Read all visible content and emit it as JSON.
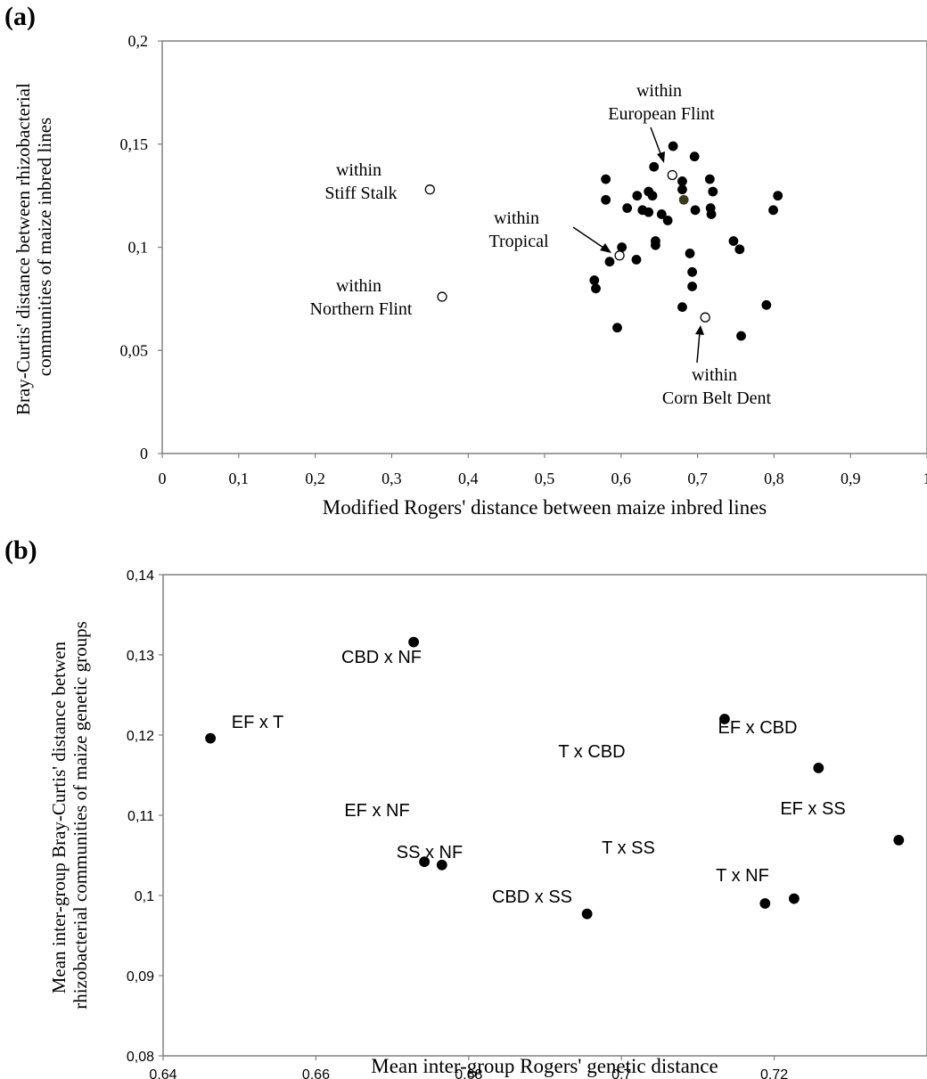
{
  "panels": [
    {
      "panel_label": "(a)",
      "chart_data": {
        "type": "scatter",
        "xlabel": "Modified Rogers' distance between maize inbred lines",
        "ylabel": [
          "Bray-Curtis' distance between rhizobacterial",
          "communities of maize inbred lines"
        ],
        "xlim": [
          0,
          1
        ],
        "ylim": [
          0,
          0.2
        ],
        "xticks": [
          0,
          0.1,
          0.2,
          0.3,
          0.4,
          0.5,
          0.6,
          0.7,
          0.8,
          0.9,
          1
        ],
        "xtick_labels": [
          "0",
          "0,1",
          "0,2",
          "0,3",
          "0,4",
          "0,5",
          "0,6",
          "0,7",
          "0,8",
          "0,9",
          "1"
        ],
        "yticks": [
          0,
          0.05,
          0.1,
          0.15,
          0.2
        ],
        "ytick_labels": [
          "0",
          "0,05",
          "0,1",
          "0,15",
          "0,2"
        ],
        "grid": false,
        "series": [
          {
            "marker": "filled",
            "color": "#000000",
            "points": [
              [
                0.668,
                0.149
              ],
              [
                0.696,
                0.144
              ],
              [
                0.643,
                0.139
              ],
              [
                0.68,
                0.132
              ],
              [
                0.716,
                0.133
              ],
              [
                0.58,
                0.133
              ],
              [
                0.68,
                0.128
              ],
              [
                0.636,
                0.127
              ],
              [
                0.72,
                0.127
              ],
              [
                0.621,
                0.125
              ],
              [
                0.641,
                0.125
              ],
              [
                0.805,
                0.125
              ],
              [
                0.58,
                0.123
              ],
              [
                0.608,
                0.119
              ],
              [
                0.628,
                0.118
              ],
              [
                0.636,
                0.117
              ],
              [
                0.697,
                0.118
              ],
              [
                0.717,
                0.119
              ],
              [
                0.718,
                0.116
              ],
              [
                0.653,
                0.116
              ],
              [
                0.799,
                0.118
              ],
              [
                0.661,
                0.113
              ],
              [
                0.747,
                0.103
              ],
              [
                0.645,
                0.103
              ],
              [
                0.645,
                0.101
              ],
              [
                0.601,
                0.1
              ],
              [
                0.755,
                0.099
              ],
              [
                0.69,
                0.097
              ],
              [
                0.62,
                0.094
              ],
              [
                0.585,
                0.093
              ],
              [
                0.693,
                0.088
              ],
              [
                0.565,
                0.084
              ],
              [
                0.567,
                0.08
              ],
              [
                0.693,
                0.081
              ],
              [
                0.79,
                0.072
              ],
              [
                0.68,
                0.071
              ],
              [
                0.595,
                0.061
              ],
              [
                0.757,
                0.057
              ]
            ]
          },
          {
            "marker": "filled",
            "color": "#3a3a1a",
            "points": [
              [
                0.682,
                0.123
              ]
            ]
          },
          {
            "marker": "open",
            "color": "#000000",
            "points": [
              [
                0.35,
                0.128
              ],
              [
                0.366,
                0.076
              ],
              [
                0.598,
                0.096
              ],
              [
                0.667,
                0.135
              ],
              [
                0.71,
                0.066
              ]
            ]
          }
        ],
        "annotations": [
          {
            "lines": [
              "within",
              "Stiff Stalk"
            ]
          },
          {
            "lines": [
              "within",
              "Northern Flint"
            ]
          },
          {
            "lines": [
              "within",
              "Tropical"
            ]
          },
          {
            "lines": [
              "within",
              "European Flint"
            ]
          },
          {
            "lines": [
              "within",
              "Corn Belt Dent"
            ]
          }
        ]
      }
    },
    {
      "panel_label": "(b)",
      "chart_data": {
        "type": "scatter",
        "xlabel": "Mean inter-group Rogers' genetic distance",
        "ylabel": [
          "Mean inter-group Bray-Curtis' distance betwen",
          "rhizobacterial communities of maize genetic groups"
        ],
        "xlim": [
          0.64,
          0.74
        ],
        "ylim": [
          0.08,
          0.14
        ],
        "xticks": [
          0.64,
          0.66,
          0.68,
          0.7,
          0.72
        ],
        "xtick_labels": [
          "0,64",
          "0,66",
          "0,68",
          "0,7",
          "0,72"
        ],
        "yticks": [
          0.08,
          0.09,
          0.1,
          0.11,
          0.12,
          0.13,
          0.14
        ],
        "ytick_labels": [
          "0,08",
          "0,09",
          "0,1",
          "0,11",
          "0,12",
          "0,13",
          "0,14"
        ],
        "grid": false,
        "series": [
          {
            "marker": "filled",
            "color": "#000000",
            "points": [
              {
                "x": 0.6728,
                "y": 0.1316,
                "label": "CBD x NF"
              },
              {
                "x": 0.6462,
                "y": 0.1196,
                "label": "EF x T"
              },
              {
                "x": 0.7135,
                "y": 0.122,
                "label": "T x CBD"
              },
              {
                "x": 0.7258,
                "y": 0.1159,
                "label": "EF x CBD"
              },
              {
                "x": 0.7363,
                "y": 0.1069,
                "label": "EF x SS"
              },
              {
                "x": 0.6742,
                "y": 0.1042,
                "label": "EF x NF"
              },
              {
                "x": 0.6765,
                "y": 0.1038,
                "label": "SS x NF"
              },
              {
                "x": 0.6955,
                "y": 0.0977,
                "label": "CBD x SS"
              },
              {
                "x": 0.7188,
                "y": 0.099,
                "label": "T x SS"
              },
              {
                "x": 0.7226,
                "y": 0.0996,
                "label": "T x NF"
              }
            ]
          }
        ]
      }
    }
  ]
}
